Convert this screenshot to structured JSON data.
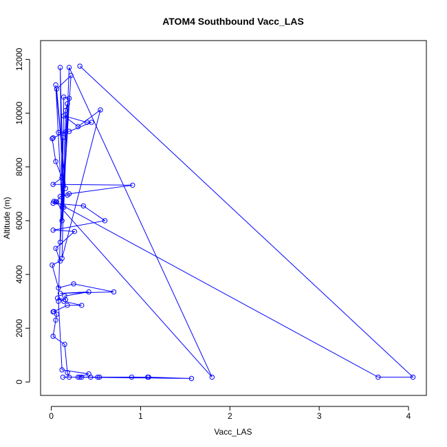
{
  "chart_data": {
    "type": "line",
    "title": "ATOM4 Southbound Vacc_LAS",
    "xlabel": "Vacc_LAS",
    "ylabel": "Altitude (m)",
    "xlim": [
      -0.12,
      4.2
    ],
    "ylim": [
      -500,
      12700
    ],
    "x_ticks": [
      0,
      1,
      2,
      3,
      4
    ],
    "y_ticks": [
      0,
      2000,
      4000,
      6000,
      8000,
      10000,
      12000
    ],
    "grid": false,
    "legend": "none",
    "series": [
      {
        "color": "#0000ff",
        "marker": "open-circle",
        "points": [
          [
            0.32,
            11750
          ],
          [
            4.05,
            180
          ],
          [
            3.66,
            180
          ],
          [
            0.05,
            6700
          ],
          [
            1.8,
            180
          ],
          [
            0.2,
            11700
          ],
          [
            0.14,
            6500
          ],
          [
            0.1,
            11700
          ],
          [
            0.12,
            6500
          ],
          [
            0.05,
            11050
          ],
          [
            0.16,
            7200
          ],
          [
            0.06,
            10900
          ],
          [
            0.22,
            11400
          ],
          [
            0.12,
            6000
          ],
          [
            0.14,
            10600
          ],
          [
            0.2,
            10550
          ],
          [
            0.1,
            5200
          ],
          [
            0.18,
            10350
          ],
          [
            0.16,
            10100
          ],
          [
            0.12,
            4600
          ],
          [
            0.55,
            10120
          ],
          [
            0.3,
            9500
          ],
          [
            0.14,
            9900
          ],
          [
            0.4,
            9660
          ],
          [
            0.45,
            9660
          ],
          [
            0.2,
            9320
          ],
          [
            0.08,
            9280
          ],
          [
            0.16,
            9300
          ],
          [
            0.02,
            9080
          ],
          [
            0.01,
            9050
          ],
          [
            0.05,
            8200
          ],
          [
            0.12,
            7600
          ],
          [
            0.02,
            7350
          ],
          [
            0.91,
            7320
          ],
          [
            0.2,
            7000
          ],
          [
            0.18,
            6950
          ],
          [
            0.1,
            6900
          ],
          [
            0.06,
            6700
          ],
          [
            0.03,
            6720
          ],
          [
            0.02,
            6650
          ],
          [
            0.36,
            6550
          ],
          [
            0.6,
            6000
          ],
          [
            0.02,
            5650
          ],
          [
            0.26,
            5600
          ],
          [
            0.05,
            4970
          ],
          [
            0.1,
            4500
          ],
          [
            0.01,
            4350
          ],
          [
            0.08,
            3500
          ],
          [
            0.25,
            3650
          ],
          [
            0.7,
            3350
          ],
          [
            0.1,
            3300
          ],
          [
            0.42,
            3350
          ],
          [
            0.15,
            3200
          ],
          [
            0.16,
            3060
          ],
          [
            0.07,
            3120
          ],
          [
            0.14,
            3000
          ],
          [
            0.34,
            2850
          ],
          [
            0.18,
            2850
          ],
          [
            0.02,
            2610
          ],
          [
            0.03,
            2620
          ],
          [
            0.06,
            2520
          ],
          [
            0.05,
            2300
          ],
          [
            0.02,
            1700
          ],
          [
            0.15,
            1400
          ],
          [
            0.18,
            350
          ],
          [
            0.2,
            180
          ],
          [
            0.13,
            180
          ],
          [
            0.32,
            180
          ],
          [
            0.34,
            180
          ],
          [
            0.44,
            180
          ],
          [
            0.52,
            180
          ],
          [
            0.54,
            180
          ],
          [
            0.9,
            180
          ],
          [
            1.08,
            180
          ],
          [
            1.09,
            180
          ],
          [
            1.57,
            130
          ],
          [
            0.3,
            180
          ],
          [
            0.42,
            300
          ],
          [
            0.12,
            450
          ],
          [
            0.08,
            3000
          ],
          [
            0.13,
            9100
          ]
        ]
      }
    ]
  }
}
